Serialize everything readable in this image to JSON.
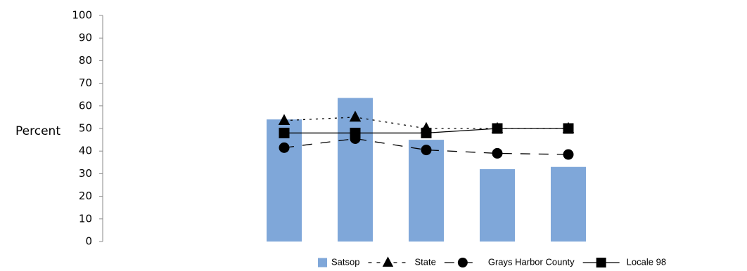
{
  "chart_data": {
    "type": "bar",
    "title": "",
    "xlabel": "",
    "ylabel": "Percent",
    "ylim": [
      0,
      100
    ],
    "yticks": [
      0,
      10,
      20,
      30,
      40,
      50,
      60,
      70,
      80,
      90,
      100
    ],
    "categories": [
      "",
      "",
      "",
      "",
      ""
    ],
    "grid": false,
    "legend_position": "bottom-right",
    "series": [
      {
        "name": "Satsop",
        "type": "bar",
        "color": "#7fa7d9",
        "values": [
          54,
          63.5,
          45,
          32,
          33
        ]
      },
      {
        "name": "State",
        "type": "line",
        "marker": "triangle",
        "line_style": "dotted",
        "color": "#000000",
        "values": [
          53.5,
          55,
          50,
          50,
          50
        ]
      },
      {
        "name": "Grays Harbor County",
        "type": "line",
        "marker": "circle",
        "line_style": "long-dash",
        "color": "#000000",
        "values": [
          41.5,
          45.5,
          40.5,
          39,
          38.5
        ]
      },
      {
        "name": "Locale 98",
        "type": "line",
        "marker": "square",
        "line_style": "solid",
        "color": "#000000",
        "values": [
          48,
          48,
          48,
          50,
          50
        ]
      }
    ]
  }
}
